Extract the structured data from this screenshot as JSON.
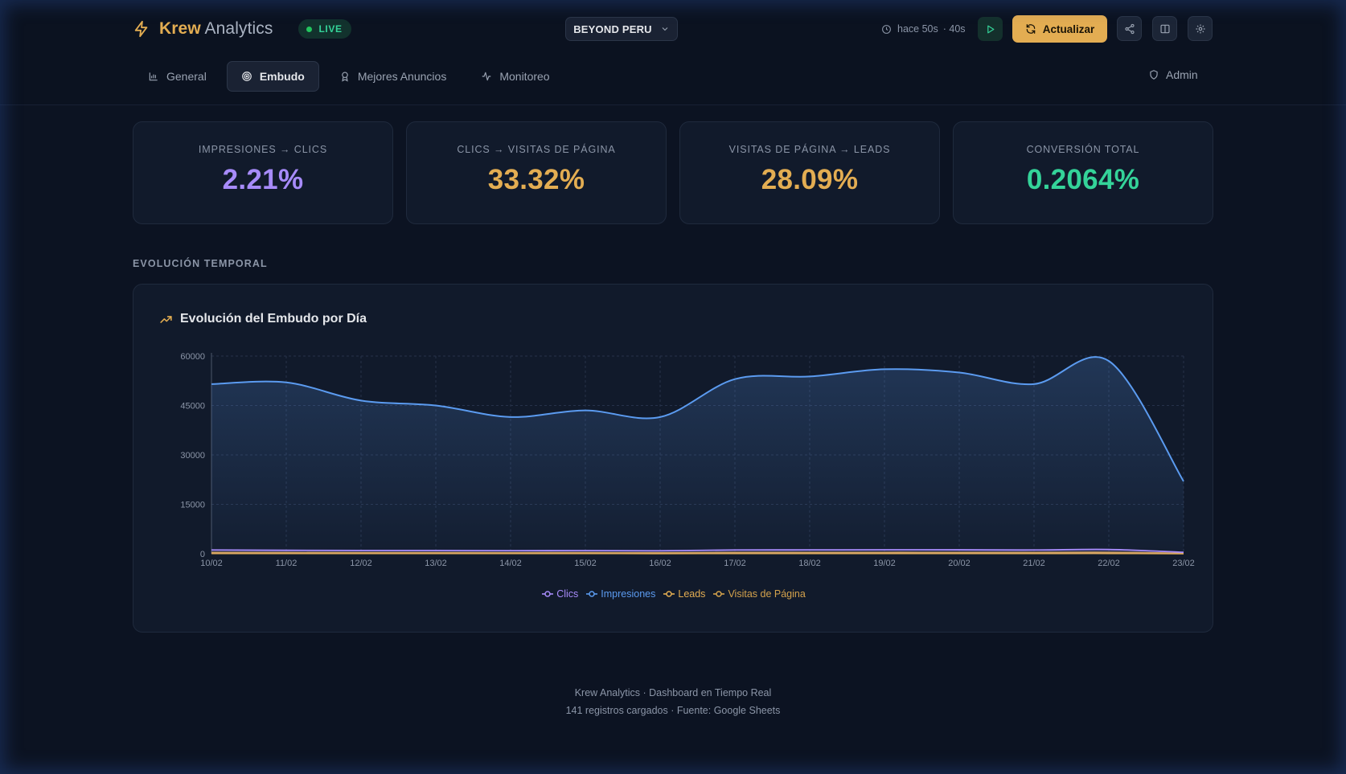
{
  "brand": {
    "name_bold": "Krew",
    "name_light": "Analytics",
    "live_label": "LIVE",
    "accent": "#e3ad52"
  },
  "header": {
    "account_selector": "BEYOND PERU",
    "last_update": "hace 50s",
    "countdown": "· 40s",
    "refresh_label": "Actualizar"
  },
  "tabs": [
    {
      "label": "General",
      "icon": "bar-chart-icon",
      "active": false
    },
    {
      "label": "Embudo",
      "icon": "target-icon",
      "active": true
    },
    {
      "label": "Mejores Anuncios",
      "icon": "award-icon",
      "active": false
    },
    {
      "label": "Monitoreo",
      "icon": "activity-icon",
      "active": false
    }
  ],
  "admin_label": "Admin",
  "kpis": [
    {
      "label": "IMPRESIONES → CLICS",
      "value": "2.21%",
      "color": "#a78bfa"
    },
    {
      "label": "CLICS → VISITAS DE PÁGINA",
      "value": "33.32%",
      "color": "#e3ad52"
    },
    {
      "label": "VISITAS DE PÁGINA → LEADS",
      "value": "28.09%",
      "color": "#e3ad52"
    },
    {
      "label": "CONVERSIÓN TOTAL",
      "value": "0.2064%",
      "color": "#34d399"
    }
  ],
  "section_label": "EVOLUCIÓN TEMPORAL",
  "chart_title": "Evolución del Embudo por Día",
  "chart_data": {
    "type": "area",
    "categories": [
      "10/02",
      "11/02",
      "12/02",
      "13/02",
      "14/02",
      "15/02",
      "16/02",
      "17/02",
      "18/02",
      "19/02",
      "20/02",
      "21/02",
      "22/02",
      "23/02"
    ],
    "ylim": [
      0,
      60000
    ],
    "yticks": [
      "0",
      "15000",
      "30000",
      "45000",
      "60000"
    ],
    "grid": true,
    "legend": "bottom",
    "series": [
      {
        "name": "Clics",
        "color": "#a78bfa",
        "values": [
          1150,
          1050,
          1000,
          1000,
          950,
          980,
          920,
          1150,
          1180,
          1220,
          1200,
          1150,
          1300,
          450
        ]
      },
      {
        "name": "Impresiones",
        "color": "#5b9bf0",
        "values": [
          51500,
          52000,
          46500,
          45000,
          41500,
          43500,
          41500,
          53000,
          53800,
          56000,
          55000,
          51500,
          58500,
          22000
        ]
      },
      {
        "name": "Leads",
        "color": "#e3ad52",
        "values": [
          100,
          95,
          90,
          88,
          85,
          90,
          82,
          100,
          105,
          108,
          104,
          100,
          112,
          40
        ]
      },
      {
        "name": "Visitas de Página",
        "color": "#d4a24c",
        "values": [
          380,
          350,
          330,
          330,
          310,
          320,
          300,
          380,
          390,
          405,
          400,
          380,
          430,
          150
        ]
      }
    ]
  },
  "footer": {
    "line1": "Krew Analytics · Dashboard en Tiempo Real",
    "line2": "141 registros cargados · Fuente: Google Sheets"
  }
}
